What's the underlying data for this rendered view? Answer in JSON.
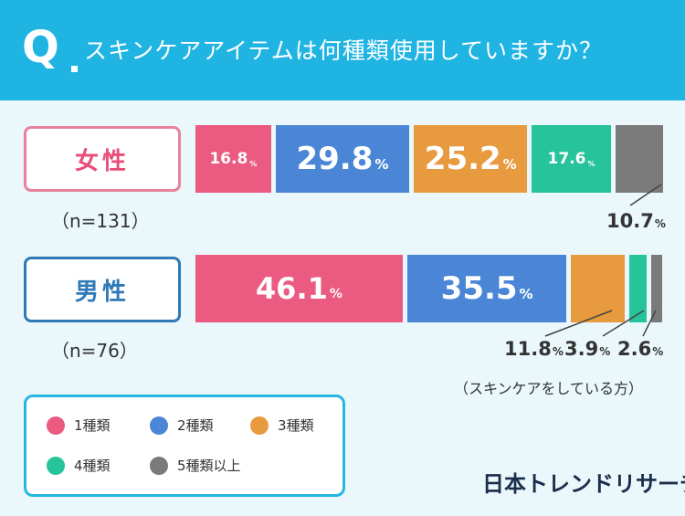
{
  "header": {
    "q_label": "Q",
    "title": "スキンケアアイテムは何種類使用していますか？"
  },
  "groups": {
    "female": {
      "label": "女性",
      "n": "（n=131）"
    },
    "male": {
      "label": "男性",
      "n": "（n=76）"
    }
  },
  "chart_data": {
    "type": "bar",
    "orientation": "horizontal-stacked-100",
    "title": "スキンケアアイテムは何種類使用していますか？",
    "categories": [
      "女性",
      "男性"
    ],
    "series": [
      {
        "name": "1種類",
        "color": "#ea5a81",
        "values": [
          16.8,
          46.1
        ]
      },
      {
        "name": "2種類",
        "color": "#4b86d6",
        "values": [
          29.8,
          35.5
        ]
      },
      {
        "name": "3種類",
        "color": "#e89a3f",
        "values": [
          25.2,
          11.8
        ]
      },
      {
        "name": "4種類",
        "color": "#27c39b",
        "values": [
          17.6,
          3.9
        ]
      },
      {
        "name": "5種類以上",
        "color": "#7a7a7a",
        "values": [
          10.7,
          2.6
        ]
      }
    ],
    "value_labels": {
      "female": [
        "16.8",
        "29.8",
        "25.2",
        "17.6",
        "10.7"
      ],
      "male": [
        "46.1",
        "35.5",
        "11.8",
        "3.9",
        "2.6"
      ]
    },
    "unit": "%"
  },
  "note": "（スキンケアをしている方）",
  "legend": {
    "items": [
      {
        "label": "1種類",
        "color": "#ea5a81"
      },
      {
        "label": "2種類",
        "color": "#4b86d6"
      },
      {
        "label": "3種類",
        "color": "#e89a3f"
      },
      {
        "label": "4種類",
        "color": "#27c39b"
      },
      {
        "label": "5種類以上",
        "color": "#7a7a7a"
      }
    ]
  },
  "brand": "日本トレンドリサーチ"
}
